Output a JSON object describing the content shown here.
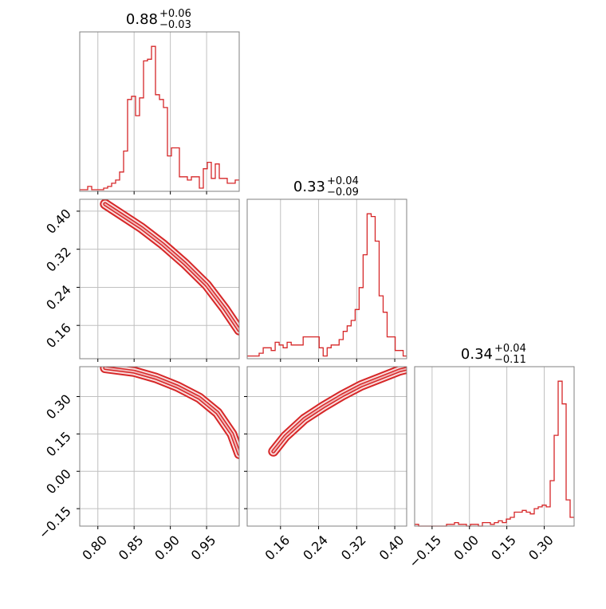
{
  "chart_data": {
    "type": "corner",
    "colors": {
      "line": "#d62728",
      "fill_inner": "#f2b7b8",
      "fill_outer": "#f9dcdc",
      "frame": "#808080",
      "grid": "#c0c0c0"
    },
    "grid": true,
    "parameters": [
      {
        "range": [
          0.775,
          0.995
        ],
        "ticks": [
          0.8,
          0.85,
          0.9,
          0.95
        ],
        "tick_labels": [
          "0.80",
          "0.85",
          "0.90",
          "0.95"
        ],
        "title": {
          "median": "0.88",
          "plus": "+0.06",
          "minus": "−0.03"
        }
      },
      {
        "range": [
          0.09,
          0.425
        ],
        "ticks": [
          0.16,
          0.24,
          0.32,
          0.4
        ],
        "tick_labels": [
          "0.16",
          "0.24",
          "0.32",
          "0.40"
        ],
        "title": {
          "median": "0.33",
          "plus": "+0.04",
          "minus": "−0.09"
        }
      },
      {
        "range": [
          -0.22,
          0.42
        ],
        "ticks": [
          -0.15,
          0.0,
          0.15,
          0.3
        ],
        "tick_labels": [
          "−0.15",
          "0.00",
          "0.15",
          "0.30"
        ],
        "title": {
          "median": "0.34",
          "plus": "+0.04",
          "minus": "−0.11"
        }
      }
    ],
    "histograms": [
      {
        "param": 0,
        "bin_edges_start": 0.775,
        "bin_width": 0.0055,
        "counts": [
          1,
          1,
          3,
          1,
          1,
          1,
          2,
          3,
          5,
          7,
          12,
          25,
          57,
          59,
          47,
          58,
          81,
          82,
          90,
          60,
          57,
          52,
          22,
          27,
          27,
          9,
          9,
          7,
          9,
          9,
          2,
          14,
          18,
          8,
          17,
          8,
          8,
          5,
          5,
          7
        ]
      },
      {
        "param": 1,
        "bin_edges_start": 0.09,
        "bin_width": 0.0084,
        "counts": [
          1,
          1,
          1,
          2,
          4,
          4,
          3,
          6,
          5,
          4,
          6,
          5,
          5,
          5,
          8,
          8,
          8,
          8,
          4,
          1,
          4,
          5,
          5,
          7,
          10,
          12,
          14,
          18,
          26,
          38,
          53,
          52,
          43,
          23,
          17,
          8,
          8,
          3,
          3,
          1
        ]
      },
      {
        "param": 2,
        "bin_edges_start": -0.22,
        "bin_width": 0.016,
        "counts": [
          1,
          0,
          0,
          0,
          0,
          0,
          0,
          0,
          1,
          1,
          2,
          1,
          1,
          0,
          1,
          1,
          0,
          2,
          2,
          1,
          2,
          3,
          2,
          4,
          5,
          8,
          8,
          9,
          8,
          7,
          10,
          11,
          12,
          11,
          26,
          52,
          83,
          70,
          15,
          5
        ]
      }
    ],
    "pairs": [
      {
        "x_param": 0,
        "y_param": 1,
        "ridge": [
          [
            0.81,
            0.415
          ],
          [
            0.83,
            0.395
          ],
          [
            0.86,
            0.365
          ],
          [
            0.89,
            0.33
          ],
          [
            0.92,
            0.29
          ],
          [
            0.95,
            0.245
          ],
          [
            0.975,
            0.195
          ],
          [
            0.995,
            0.15
          ]
        ]
      },
      {
        "x_param": 0,
        "y_param": 2,
        "ridge": [
          [
            0.81,
            0.415
          ],
          [
            0.85,
            0.4
          ],
          [
            0.88,
            0.375
          ],
          [
            0.91,
            0.34
          ],
          [
            0.94,
            0.295
          ],
          [
            0.965,
            0.235
          ],
          [
            0.985,
            0.15
          ],
          [
            0.995,
            0.07
          ]
        ]
      },
      {
        "x_param": 1,
        "y_param": 2,
        "ridge": [
          [
            0.145,
            0.08
          ],
          [
            0.17,
            0.14
          ],
          [
            0.21,
            0.21
          ],
          [
            0.25,
            0.26
          ],
          [
            0.29,
            0.305
          ],
          [
            0.33,
            0.345
          ],
          [
            0.37,
            0.375
          ],
          [
            0.41,
            0.405
          ],
          [
            0.425,
            0.412
          ]
        ]
      }
    ]
  }
}
